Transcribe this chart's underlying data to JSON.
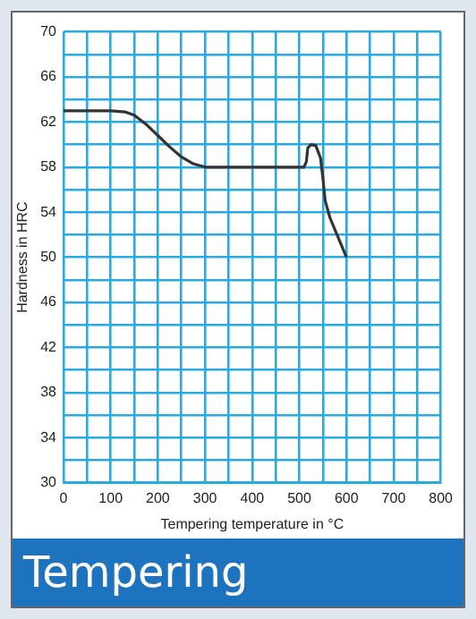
{
  "chart_data": {
    "type": "line",
    "title": "Tempering",
    "xlabel": "Tempering temperature in °C",
    "ylabel": "Hardness in HRC",
    "x": [
      0,
      100,
      130,
      150,
      175,
      200,
      225,
      250,
      275,
      300,
      400,
      510,
      515,
      518,
      525,
      535,
      545,
      550,
      555,
      565,
      580,
      600
    ],
    "series": [
      {
        "color": "#333333",
        "values": [
          63,
          63,
          62.9,
          62.6,
          61.8,
          60.8,
          59.8,
          58.9,
          58.3,
          58,
          58,
          58,
          58.5,
          59.7,
          60,
          59.9,
          58.8,
          57,
          55,
          53.5,
          52,
          50
        ]
      }
    ],
    "xlim": [
      0,
      800
    ],
    "ylim": [
      30,
      70
    ],
    "xticks": [
      0,
      {
        "value": 50,
        "label": null
      },
      100,
      {
        "value": 150,
        "label": null
      },
      200,
      {
        "value": 250,
        "label": null
      },
      300,
      {
        "value": 350,
        "label": null
      },
      400,
      {
        "value": 450,
        "label": null
      },
      500,
      {
        "value": 550,
        "label": null
      },
      600,
      {
        "value": 650,
        "label": null
      },
      700,
      {
        "value": 750,
        "label": null
      },
      800
    ],
    "yticks": [
      30,
      {
        "value": 32,
        "label": null
      },
      34,
      {
        "value": 36,
        "label": null
      },
      38,
      {
        "value": 40,
        "label": null
      },
      42,
      {
        "value": 44,
        "label": null
      },
      46,
      {
        "value": 48,
        "label": null
      },
      50,
      {
        "value": 52,
        "label": null
      },
      54,
      {
        "value": 56,
        "label": null
      },
      58,
      {
        "value": 60,
        "label": null
      },
      62,
      {
        "value": 64,
        "label": null
      },
      66,
      {
        "value": 68,
        "label": null
      },
      70
    ],
    "grid": true,
    "marker": "none",
    "line_style": "solid",
    "legend": false
  }
}
